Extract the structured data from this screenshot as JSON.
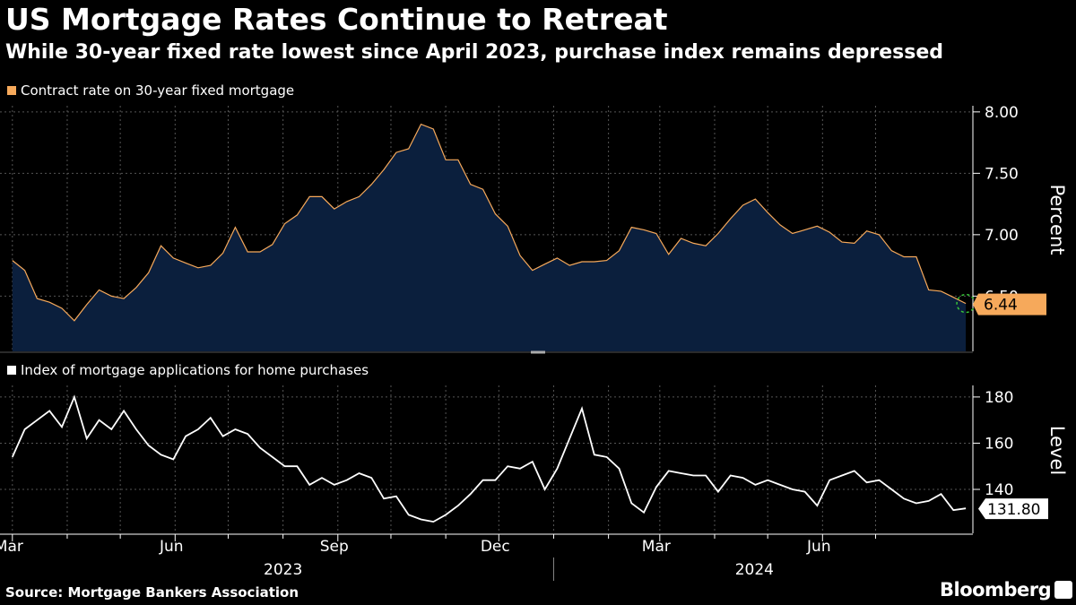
{
  "header": {
    "title": "US Mortgage Rates Continue to Retreat",
    "subtitle": "While 30-year fixed rate lowest since April 2023, purchase index remains depressed"
  },
  "footer": {
    "source": "Source: Mortgage Bankers Association",
    "brand": "Bloomberg"
  },
  "colors": {
    "background": "#000000",
    "rate_line": "#f6a95b",
    "rate_fill": "#0b1f3d",
    "index_line": "#ffffff",
    "grid": "#555555"
  },
  "chart_data": [
    {
      "type": "area",
      "legend": "Contract rate on 30-year fixed mortgage",
      "ylabel": "Percent",
      "ylim": [
        6.05,
        8.05
      ],
      "yticks": [
        6.5,
        7.0,
        7.5,
        8.0
      ],
      "ytick_labels": [
        "6.50",
        "7.00",
        "7.50",
        "8.00"
      ],
      "last_value_label": "6.44",
      "x_start": "2023-03-01",
      "x_step_days": 7,
      "values": [
        6.79,
        6.71,
        6.48,
        6.45,
        6.4,
        6.3,
        6.43,
        6.55,
        6.5,
        6.48,
        6.57,
        6.69,
        6.91,
        6.81,
        6.77,
        6.73,
        6.75,
        6.85,
        7.06,
        6.86,
        6.86,
        6.92,
        7.09,
        7.16,
        7.31,
        7.31,
        7.21,
        7.27,
        7.31,
        7.41,
        7.53,
        7.67,
        7.7,
        7.9,
        7.86,
        7.61,
        7.61,
        7.41,
        7.37,
        7.17,
        7.07,
        6.83,
        6.71,
        6.76,
        6.81,
        6.75,
        6.78,
        6.78,
        6.79,
        6.87,
        7.06,
        7.04,
        7.01,
        6.84,
        6.97,
        6.93,
        6.91,
        7.01,
        7.13,
        7.24,
        7.29,
        7.18,
        7.08,
        7.01,
        7.04,
        7.07,
        7.02,
        6.94,
        6.93,
        7.03,
        7.0,
        6.87,
        6.82,
        6.82,
        6.55,
        6.54,
        6.49,
        6.44
      ]
    },
    {
      "type": "line",
      "legend": "Index of mortgage applications for home purchases",
      "ylabel": "Level",
      "ylim": [
        121,
        185
      ],
      "yticks": [
        140,
        160,
        180
      ],
      "ytick_labels": [
        "140",
        "160",
        "180"
      ],
      "last_value_label": "131.80",
      "x_start": "2023-03-01",
      "x_step_days": 7,
      "values": [
        154,
        166,
        170,
        174,
        167,
        180,
        162,
        170,
        166,
        174,
        166,
        159,
        155,
        153,
        163,
        166,
        171,
        163,
        166,
        164,
        158,
        154,
        150,
        150,
        142,
        145,
        142,
        144,
        147,
        145,
        136,
        137,
        129,
        127,
        126,
        129,
        133,
        138,
        144,
        144,
        150,
        149,
        152,
        140,
        149,
        162,
        175,
        155,
        154,
        149,
        134,
        130,
        141,
        148,
        147,
        146,
        146,
        139,
        146,
        145,
        142,
        144,
        142,
        140,
        139,
        133,
        144,
        146,
        148,
        143,
        144,
        140,
        136,
        134,
        135,
        138,
        131,
        131.8
      ]
    }
  ],
  "x_axis": {
    "month_ticks": [
      {
        "label": "Mar",
        "date": "2023-03-01"
      },
      {
        "label": "Jun",
        "date": "2023-06-01"
      },
      {
        "label": "Sep",
        "date": "2023-09-01"
      },
      {
        "label": "Dec",
        "date": "2023-12-01"
      },
      {
        "label": "Mar",
        "date": "2024-03-01"
      },
      {
        "label": "Jun",
        "date": "2024-06-01"
      }
    ],
    "minor_ticks": [
      "2023-04-01",
      "2023-05-01",
      "2023-07-01",
      "2023-08-01",
      "2023-10-01",
      "2023-11-01",
      "2024-01-01",
      "2024-02-01",
      "2024-04-01",
      "2024-05-01",
      "2024-07-01"
    ],
    "year_labels": [
      {
        "label": "2023",
        "start": "2023-03-01",
        "end": "2024-01-01"
      },
      {
        "label": "2024",
        "start": "2024-01-01",
        "end": "2024-08-15"
      }
    ],
    "year_divider": "2024-01-01"
  }
}
